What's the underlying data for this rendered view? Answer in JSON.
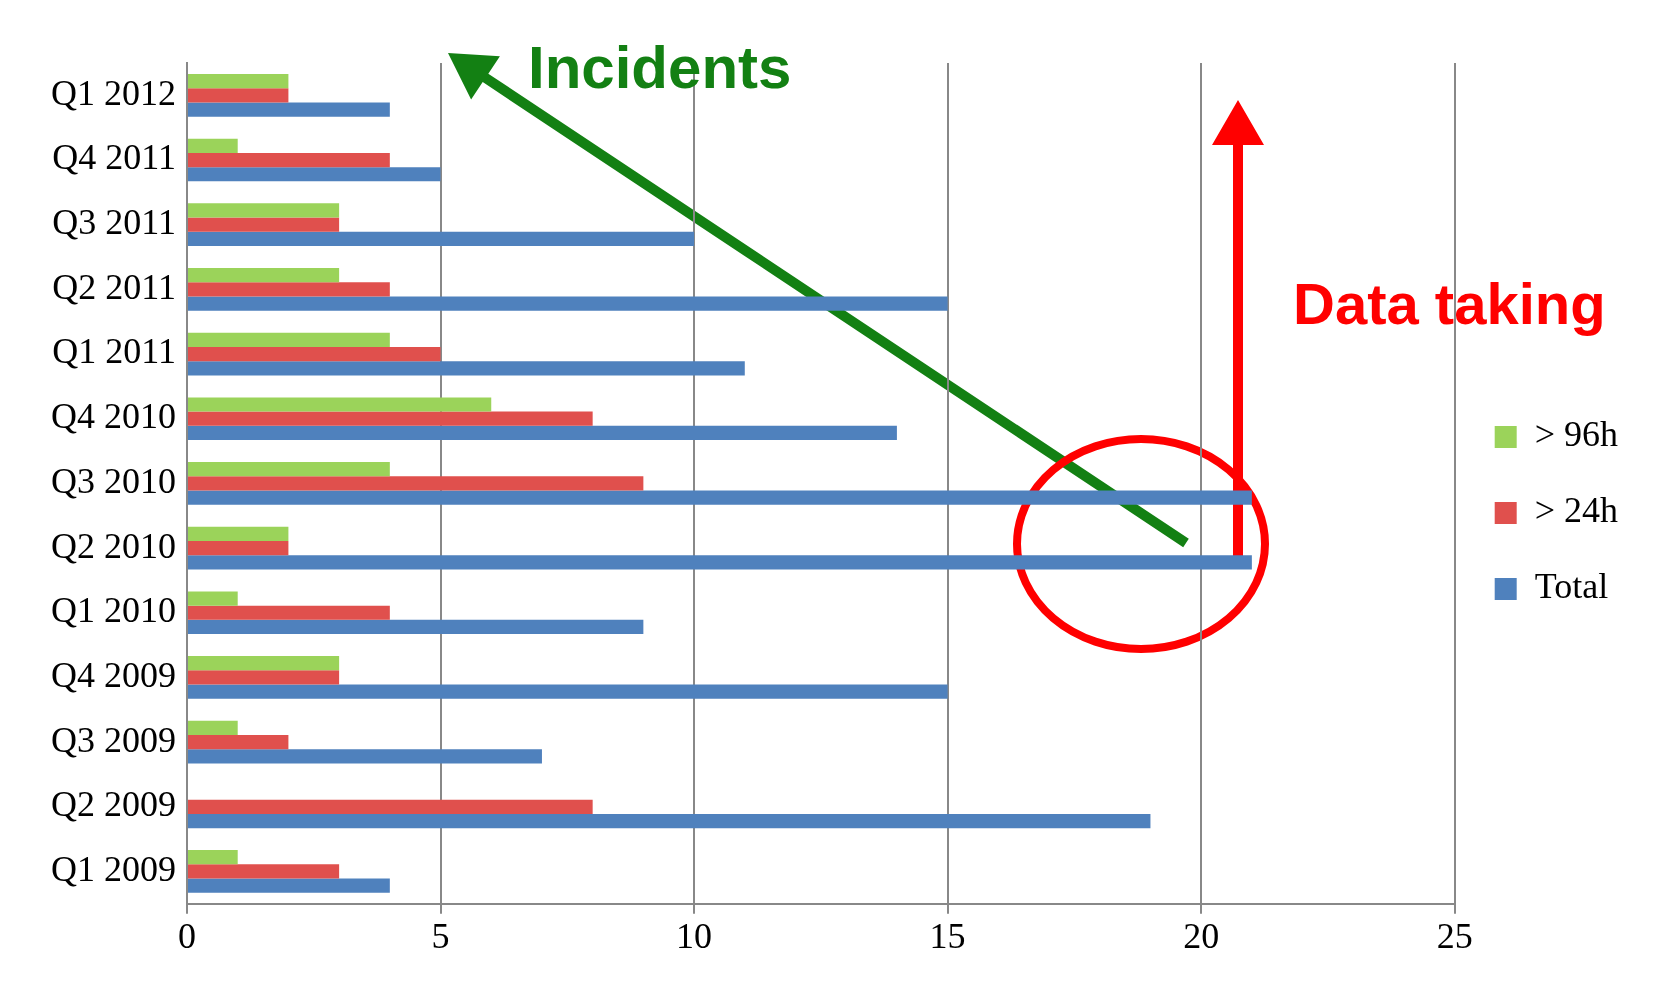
{
  "chart_data": {
    "type": "bar",
    "orientation": "horizontal",
    "categories": [
      "Q1 2012",
      "Q4 2011",
      "Q3 2011",
      "Q2 2011",
      "Q1 2011",
      "Q4 2010",
      "Q3 2010",
      "Q2 2010",
      "Q1 2010",
      "Q4 2009",
      "Q3 2009",
      "Q2 2009",
      "Q1 2009"
    ],
    "series": [
      {
        "name": "> 96h",
        "color": "#9bd35a",
        "values": [
          2,
          1,
          3,
          3,
          4,
          6,
          4,
          2,
          1,
          3,
          1,
          0,
          1
        ]
      },
      {
        "name": "> 24h",
        "color": "#e0504d",
        "values": [
          2,
          4,
          3,
          4,
          5,
          8,
          9,
          2,
          4,
          3,
          2,
          8,
          3
        ]
      },
      {
        "name": "Total",
        "color": "#4f81bd",
        "values": [
          4,
          5,
          10,
          15,
          11,
          14,
          21,
          21,
          9,
          15,
          7,
          19,
          4
        ]
      }
    ],
    "xlim": [
      0,
      25
    ],
    "xticks": [
      0,
      5,
      10,
      15,
      20,
      25
    ],
    "grid": "x",
    "legend": "right",
    "annotations": [
      "Incidents",
      "Data taking"
    ]
  }
}
